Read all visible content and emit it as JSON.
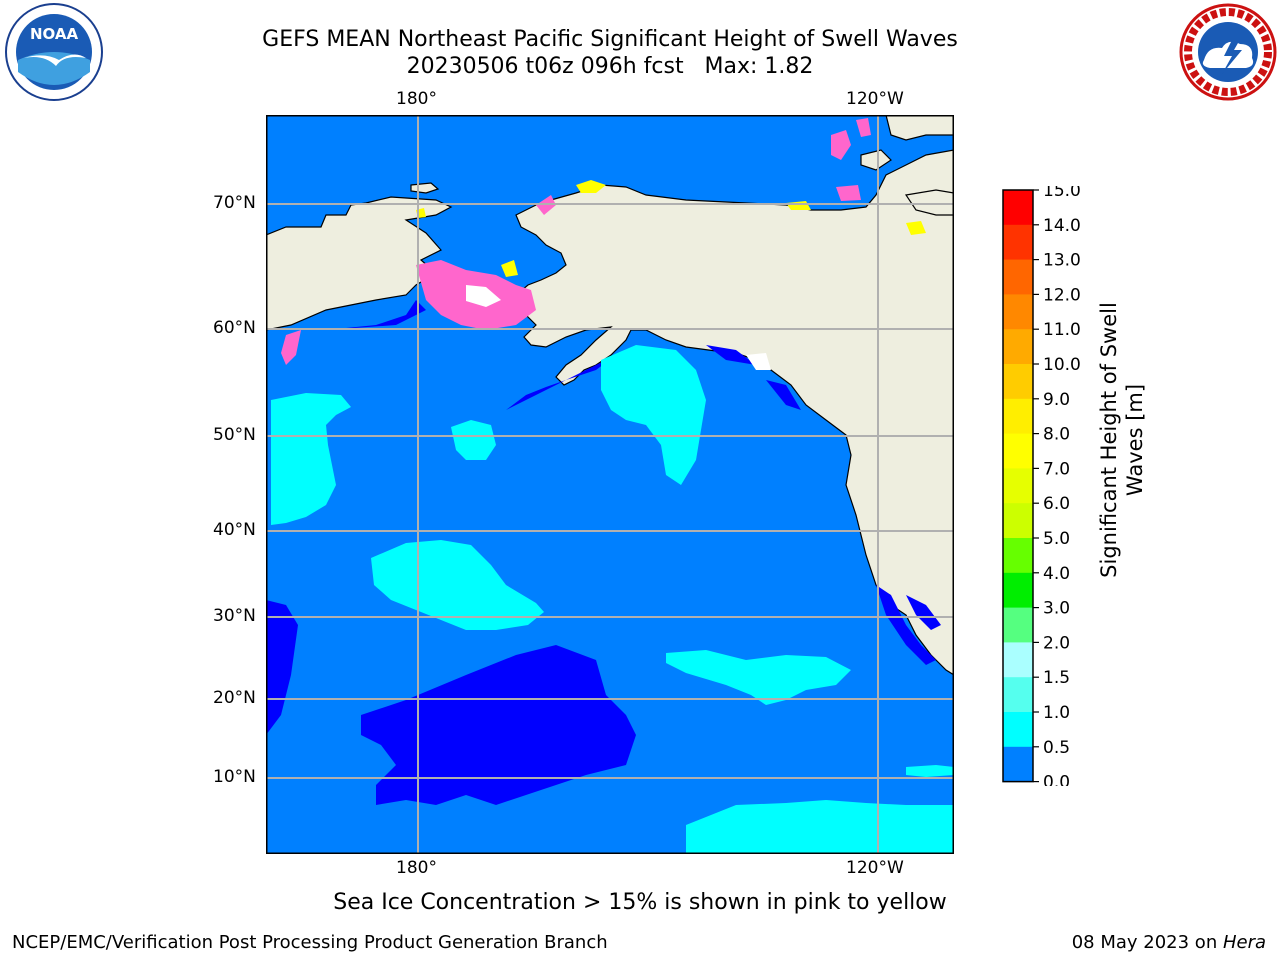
{
  "title": {
    "line1": "GEFS MEAN Northeast Pacific Significant Height of Swell Waves",
    "line2": "20230506 t06z 096h fcst   Max: 1.82"
  },
  "logos": {
    "left": "noaa-logo",
    "left_text": "NOAA",
    "right": "national-weather-service-logo",
    "right_text": "NATIONAL WEATHER SERVICE"
  },
  "map": {
    "lon_labels_top": [
      "180°",
      "120°W"
    ],
    "lon_labels_bottom": [
      "180°",
      "120°W"
    ],
    "lat_labels": [
      "70°N",
      "60°N",
      "50°N",
      "40°N",
      "30°N",
      "20°N",
      "10°N"
    ],
    "colors": {
      "land": "#eeeedf",
      "ocean_0_5_1": "#0080ff",
      "ocean_0_0_5": "#0000ff",
      "ocean_1_1_5": "#00ffff",
      "ice_pink": "#ff66cc",
      "ice_yellow": "#ffff00",
      "grid": "#b0b0b0"
    }
  },
  "colorbar": {
    "title": "Significant Height of Swell\nWaves [m]",
    "ticks": [
      "15.0",
      "14.0",
      "13.0",
      "12.0",
      "11.0",
      "10.0",
      "9.0",
      "8.0",
      "7.0",
      "6.0",
      "5.0",
      "4.0",
      "3.0",
      "2.0",
      "1.5",
      "1.0",
      "0.5",
      "0.0"
    ],
    "colors": [
      "#ff0000",
      "#ff3300",
      "#ff6600",
      "#ff8800",
      "#ffaa00",
      "#ffcc00",
      "#ffee00",
      "#ffff00",
      "#e6ff00",
      "#ccff00",
      "#66ff00",
      "#00ee00",
      "#55ff80",
      "#66ffcc",
      "#aaffff",
      "#55ffee",
      "#00ffff",
      "#0080ff",
      "#0000ff"
    ]
  },
  "caption": "Sea Ice Concentration > 15% is shown in pink to yellow",
  "footer": {
    "left": "NCEP/EMC/Verification Post Processing Product Generation Branch",
    "right_date": "08 May 2023 on ",
    "right_host": "Hera"
  }
}
